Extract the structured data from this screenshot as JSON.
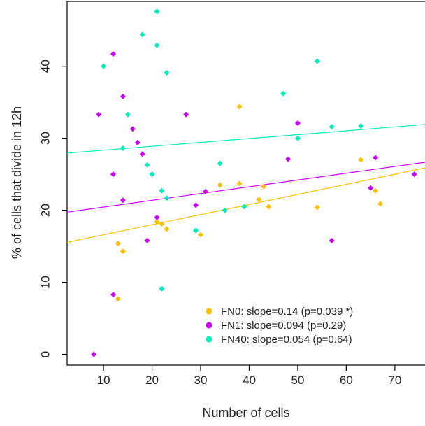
{
  "chart_data": {
    "type": "scatter",
    "title": "",
    "xlabel": "Number of cells",
    "ylabel": "% of cells that divide in 12h",
    "xlim": [
      2.5,
      76.5
    ],
    "ylim": [
      -1.5,
      49
    ],
    "xticks": [
      10,
      20,
      30,
      40,
      50,
      60,
      70
    ],
    "yticks": [
      0,
      10,
      20,
      30,
      40
    ],
    "grid": false,
    "legend_position": "bottom-right",
    "series": [
      {
        "name": "FN0",
        "legend_label": "FN0: slope=0.14 (p=0.039 *)",
        "color": "#FFC000",
        "trend": {
          "slope": 0.14,
          "intercept": 15.2
        },
        "points": [
          [
            13,
            15.4
          ],
          [
            13,
            7.7
          ],
          [
            14,
            14.3
          ],
          [
            21,
            18.4
          ],
          [
            22,
            18.1
          ],
          [
            23,
            17.4
          ],
          [
            30,
            16.6
          ],
          [
            34,
            23.5
          ],
          [
            38,
            34.4
          ],
          [
            38,
            23.7
          ],
          [
            42,
            21.5
          ],
          [
            43,
            23.3
          ],
          [
            44,
            20.5
          ],
          [
            54,
            20.4
          ],
          [
            63,
            27.0
          ],
          [
            66,
            22.7
          ],
          [
            67,
            20.9
          ]
        ]
      },
      {
        "name": "FN1",
        "legend_label": "FN1: slope=0.094 (p=0.29)",
        "color": "#CC00FF",
        "trend": {
          "slope": 0.094,
          "intercept": 19.5
        },
        "points": [
          [
            8,
            0.0
          ],
          [
            9,
            33.3
          ],
          [
            12,
            41.7
          ],
          [
            12,
            25.0
          ],
          [
            12,
            8.3
          ],
          [
            14,
            35.8
          ],
          [
            14,
            21.4
          ],
          [
            16,
            31.3
          ],
          [
            17,
            29.4
          ],
          [
            18,
            27.8
          ],
          [
            19,
            15.8
          ],
          [
            21,
            19.0
          ],
          [
            27,
            33.3
          ],
          [
            29,
            20.7
          ],
          [
            31,
            22.6
          ],
          [
            48,
            27.1
          ],
          [
            50,
            32.1
          ],
          [
            57,
            15.8
          ],
          [
            65,
            23.1
          ],
          [
            66,
            27.3
          ],
          [
            74,
            25.0
          ]
        ]
      },
      {
        "name": "FN40",
        "legend_label": "FN40: slope=0.054 (p=0.64)",
        "color": "#00EEBB",
        "trend": {
          "slope": 0.054,
          "intercept": 27.8
        },
        "points": [
          [
            10,
            40.0
          ],
          [
            14,
            28.6
          ],
          [
            15,
            33.3
          ],
          [
            18,
            44.4
          ],
          [
            19,
            26.3
          ],
          [
            20,
            25.0
          ],
          [
            21,
            47.6
          ],
          [
            21,
            42.9
          ],
          [
            22,
            22.7
          ],
          [
            22,
            9.1
          ],
          [
            23,
            39.1
          ],
          [
            23,
            21.7
          ],
          [
            29,
            17.2
          ],
          [
            34,
            26.5
          ],
          [
            35,
            20.0
          ],
          [
            39,
            20.5
          ],
          [
            47,
            36.2
          ],
          [
            50,
            30.0
          ],
          [
            54,
            40.7
          ],
          [
            57,
            31.6
          ],
          [
            63,
            31.7
          ]
        ]
      }
    ]
  }
}
